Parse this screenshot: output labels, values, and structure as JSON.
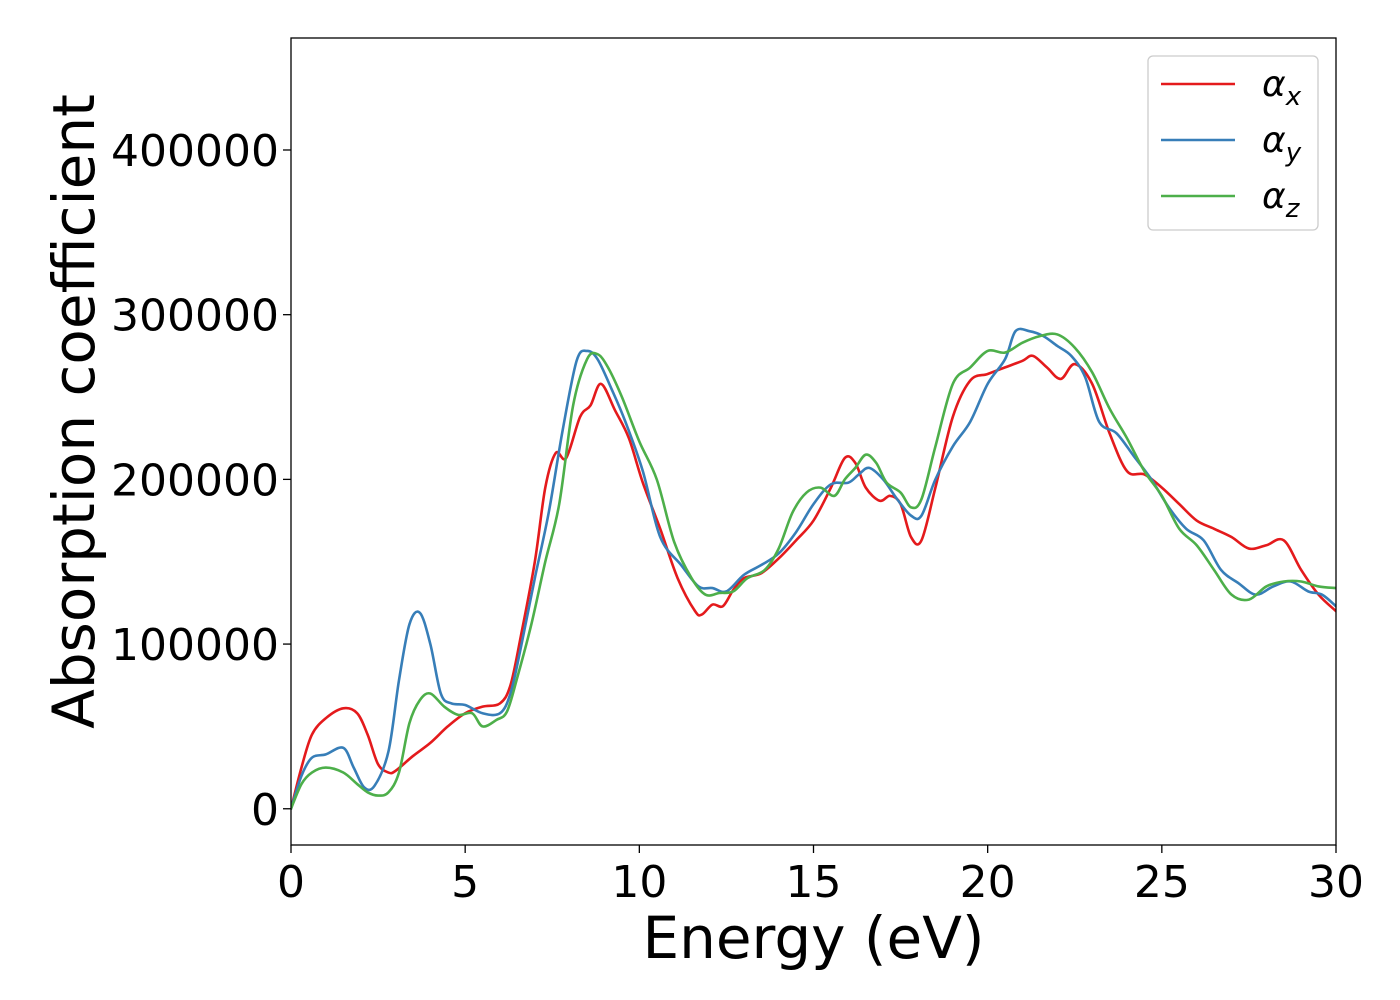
{
  "chart_data": {
    "type": "line",
    "title": "",
    "xlabel": "Energy (eV)",
    "ylabel": "Absorption coefficient",
    "xlim": [
      0,
      30
    ],
    "ylim": [
      -22000,
      468000
    ],
    "xticks": [
      0,
      5,
      10,
      15,
      20,
      25,
      30
    ],
    "yticks": [
      0,
      100000,
      200000,
      300000,
      400000
    ],
    "grid": false,
    "legend": {
      "position": "top-right",
      "entries": [
        {
          "base": "α",
          "sub": "x"
        },
        {
          "base": "α",
          "sub": "y"
        },
        {
          "base": "α",
          "sub": "z"
        }
      ]
    },
    "series": [
      {
        "name": "αx",
        "color": "#e41a1c",
        "x": [
          0,
          0.3,
          0.6,
          1.0,
          1.5,
          1.9,
          2.2,
          2.5,
          2.8,
          3.0,
          3.5,
          4.0,
          4.5,
          5.0,
          5.5,
          6.0,
          6.3,
          6.6,
          7.0,
          7.3,
          7.6,
          7.9,
          8.3,
          8.6,
          8.9,
          9.3,
          9.7,
          10.1,
          10.6,
          11.1,
          11.6,
          11.8,
          12.1,
          12.4,
          12.7,
          13.0,
          13.5,
          14.0,
          14.5,
          15.0,
          15.5,
          15.9,
          16.2,
          16.5,
          16.9,
          17.2,
          17.5,
          17.8,
          18.1,
          18.5,
          19.0,
          19.5,
          20.0,
          20.5,
          21.0,
          21.3,
          21.7,
          22.1,
          22.5,
          23.0,
          23.5,
          24.0,
          24.5,
          25.0,
          25.5,
          26.0,
          26.5,
          27.0,
          27.5,
          28.0,
          28.5,
          29.0,
          29.5,
          30.0
        ],
        "y": [
          0,
          25000,
          45000,
          55000,
          61000,
          58000,
          45000,
          27000,
          22000,
          23000,
          32000,
          40000,
          50000,
          58000,
          62000,
          64000,
          75000,
          105000,
          150000,
          195000,
          216000,
          213000,
          238000,
          245000,
          258000,
          242000,
          225000,
          198000,
          170000,
          140000,
          120000,
          118000,
          124000,
          123000,
          133000,
          140000,
          143000,
          152000,
          163000,
          175000,
          195000,
          213000,
          210000,
          195000,
          187000,
          190000,
          185000,
          165000,
          163000,
          195000,
          238000,
          260000,
          264000,
          268000,
          272000,
          275000,
          268000,
          261000,
          270000,
          258000,
          228000,
          205000,
          203000,
          195000,
          185000,
          175000,
          170000,
          165000,
          158000,
          160000,
          163000,
          145000,
          130000,
          120000
        ]
      },
      {
        "name": "αy",
        "color": "#377eb8",
        "x": [
          0,
          0.3,
          0.6,
          1.0,
          1.5,
          1.8,
          2.1,
          2.4,
          2.8,
          3.1,
          3.4,
          3.7,
          4.0,
          4.3,
          4.6,
          5.0,
          5.5,
          6.0,
          6.3,
          6.6,
          7.0,
          7.4,
          7.8,
          8.2,
          8.5,
          8.8,
          9.2,
          9.6,
          10.1,
          10.6,
          11.2,
          11.7,
          12.1,
          12.5,
          13.0,
          13.5,
          14.0,
          14.5,
          15.0,
          15.5,
          16.0,
          16.3,
          16.6,
          17.0,
          17.4,
          17.8,
          18.1,
          18.5,
          19.0,
          19.5,
          20.0,
          20.5,
          20.8,
          21.2,
          21.6,
          22.0,
          22.4,
          22.8,
          23.2,
          23.7,
          24.2,
          24.7,
          25.2,
          25.7,
          26.2,
          26.7,
          27.2,
          27.7,
          28.2,
          28.7,
          29.2,
          29.6,
          30.0
        ],
        "y": [
          0,
          20000,
          31000,
          33000,
          37000,
          25000,
          13000,
          14000,
          35000,
          78000,
          112000,
          119000,
          100000,
          70000,
          64000,
          63000,
          58000,
          58000,
          70000,
          98000,
          140000,
          180000,
          230000,
          272000,
          278000,
          273000,
          255000,
          235000,
          205000,
          165000,
          148000,
          135000,
          134000,
          132000,
          142000,
          148000,
          155000,
          168000,
          185000,
          197000,
          198000,
          203000,
          207000,
          200000,
          188000,
          178000,
          178000,
          200000,
          220000,
          235000,
          258000,
          273000,
          290000,
          290000,
          287000,
          281000,
          275000,
          262000,
          235000,
          228000,
          214000,
          200000,
          183000,
          170000,
          163000,
          145000,
          137000,
          130000,
          135000,
          138000,
          132000,
          130000,
          123000
        ]
      },
      {
        "name": "αz",
        "color": "#4daf4a",
        "x": [
          0,
          0.3,
          0.6,
          1.0,
          1.5,
          1.9,
          2.2,
          2.5,
          2.8,
          3.1,
          3.4,
          3.7,
          4.0,
          4.4,
          4.8,
          5.2,
          5.5,
          5.9,
          6.2,
          6.5,
          6.9,
          7.3,
          7.7,
          8.1,
          8.5,
          8.8,
          9.1,
          9.5,
          10.0,
          10.5,
          11.0,
          11.5,
          11.9,
          12.3,
          12.7,
          13.1,
          13.6,
          14.0,
          14.4,
          14.8,
          15.2,
          15.6,
          15.9,
          16.2,
          16.5,
          16.8,
          17.1,
          17.5,
          17.8,
          18.1,
          18.5,
          19.0,
          19.5,
          20.0,
          20.5,
          21.0,
          21.5,
          22.0,
          22.5,
          23.0,
          23.5,
          24.0,
          24.5,
          25.0,
          25.5,
          26.0,
          26.5,
          27.0,
          27.5,
          28.0,
          28.5,
          29.0,
          29.5,
          30.0
        ],
        "y": [
          0,
          15000,
          22000,
          25000,
          22000,
          15000,
          10000,
          8000,
          10000,
          22000,
          52000,
          66000,
          70000,
          62000,
          57000,
          58000,
          50000,
          54000,
          59000,
          80000,
          112000,
          150000,
          185000,
          245000,
          273000,
          276000,
          268000,
          250000,
          223000,
          200000,
          162000,
          140000,
          130000,
          131000,
          132000,
          140000,
          145000,
          158000,
          180000,
          192000,
          195000,
          190000,
          200000,
          207000,
          215000,
          210000,
          198000,
          192000,
          183000,
          188000,
          220000,
          258000,
          268000,
          278000,
          277000,
          283000,
          287000,
          288000,
          280000,
          265000,
          243000,
          225000,
          205000,
          190000,
          170000,
          160000,
          145000,
          130000,
          127000,
          135000,
          138000,
          138000,
          135000,
          134000
        ]
      }
    ]
  }
}
